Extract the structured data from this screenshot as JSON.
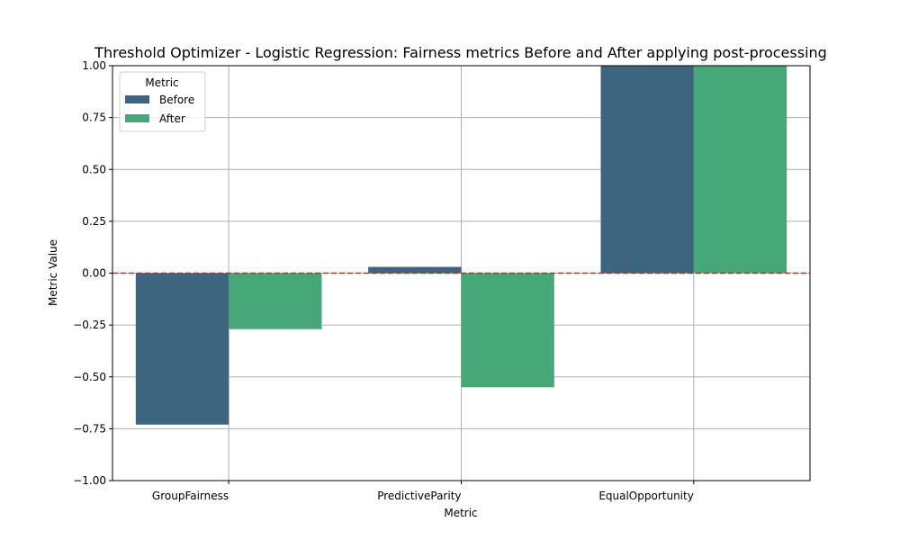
{
  "chart_data": {
    "type": "bar",
    "title": "Threshold Optimizer - Logistic Regression: Fairness metrics Before and After applying post-processing",
    "xlabel": "Metric",
    "ylabel": "Metric Value",
    "categories": [
      "GroupFairness",
      "PredictiveParity",
      "EqualOpportunity"
    ],
    "series": [
      {
        "name": "Before",
        "values": [
          -0.73,
          0.03,
          1.0
        ],
        "color": "#3e6580"
      },
      {
        "name": "After",
        "values": [
          -0.27,
          -0.55,
          1.0
        ],
        "color": "#46a878"
      }
    ],
    "ylim": [
      -1.0,
      1.0
    ],
    "yticks": [
      -1.0,
      -0.75,
      -0.5,
      -0.25,
      0.0,
      0.25,
      0.5,
      0.75,
      1.0
    ],
    "ytick_labels": [
      "−1.00",
      "−0.75",
      "−0.50",
      "−0.25",
      "0.00",
      "0.25",
      "0.50",
      "0.75",
      "1.00"
    ],
    "grid": true,
    "reference_line": {
      "y": 0.0,
      "color": "#e31a1c",
      "style": "dashed"
    },
    "legend": {
      "title": "Metric",
      "placement": "top-left"
    }
  }
}
